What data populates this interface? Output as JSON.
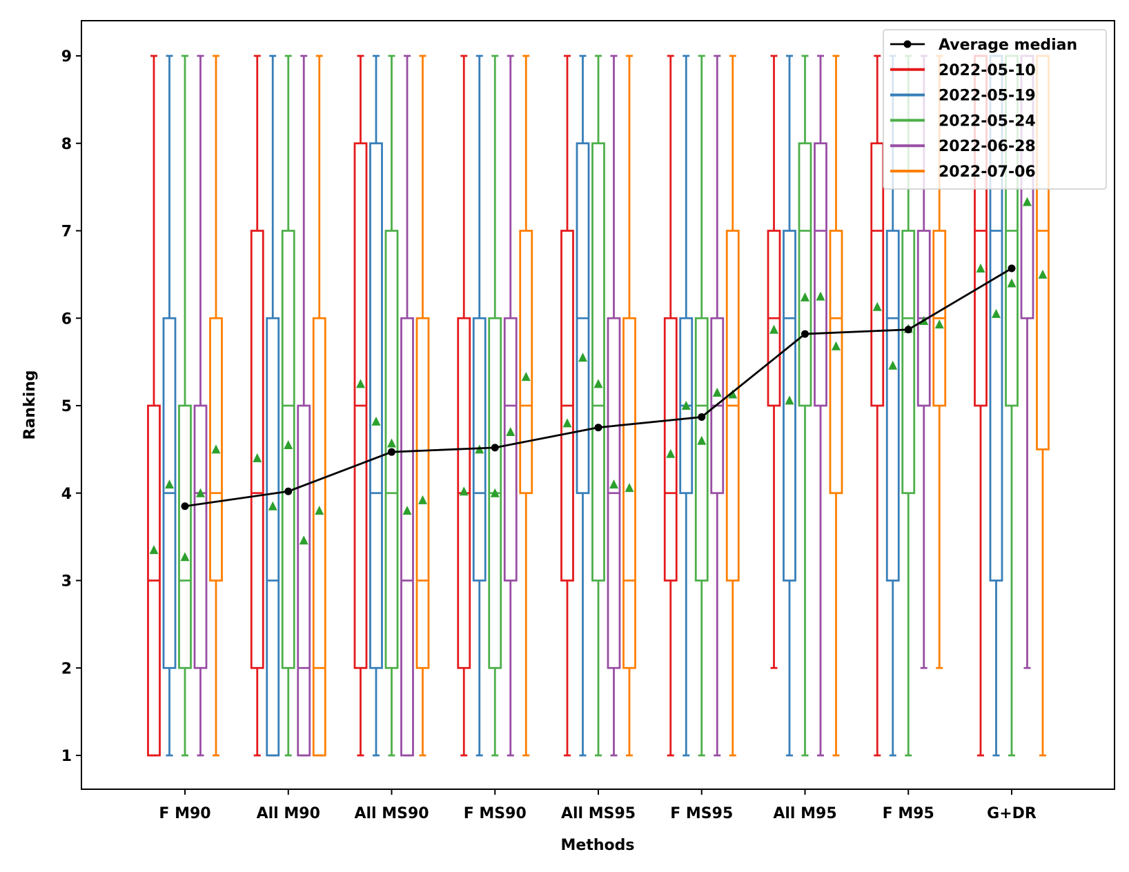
{
  "chart_data": {
    "type": "box",
    "title": "",
    "xlabel": "Methods",
    "ylabel": "Ranking",
    "ylim": [
      0.6,
      9.4
    ],
    "yticks": [
      "1",
      "2",
      "3",
      "4",
      "5",
      "6",
      "7",
      "8",
      "9"
    ],
    "grid": false,
    "legend_position": "top-right",
    "categories": [
      "F M90",
      "All M90",
      "All MS90",
      "F MS90",
      "All MS95",
      "F MS95",
      "All M95",
      "F M95",
      "G+DR"
    ],
    "mean_marker_color": "#2ca02c",
    "series": [
      {
        "name": "2022-05-10",
        "color": "#e41a1c",
        "boxes": [
          {
            "min": 1,
            "q1": 1,
            "median": 3,
            "q3": 5,
            "max": 9,
            "mean": 3.35
          },
          {
            "min": 1,
            "q1": 2,
            "median": 4,
            "q3": 7,
            "max": 9,
            "mean": 4.4
          },
          {
            "min": 1,
            "q1": 2,
            "median": 5,
            "q3": 8,
            "max": 9,
            "mean": 5.25
          },
          {
            "min": 1,
            "q1": 2,
            "median": 4,
            "q3": 6,
            "max": 9,
            "mean": 4.02
          },
          {
            "min": 1,
            "q1": 3,
            "median": 5,
            "q3": 7,
            "max": 9,
            "mean": 4.8
          },
          {
            "min": 1,
            "q1": 3,
            "median": 4,
            "q3": 6,
            "max": 9,
            "mean": 4.45
          },
          {
            "min": 2,
            "q1": 5,
            "median": 6,
            "q3": 7,
            "max": 9,
            "mean": 5.87
          },
          {
            "min": 1,
            "q1": 5,
            "median": 7,
            "q3": 8,
            "max": 9,
            "mean": 6.13
          },
          {
            "min": 1,
            "q1": 5,
            "median": 7,
            "q3": 9,
            "max": 9,
            "mean": 6.57
          }
        ]
      },
      {
        "name": "2022-05-19",
        "color": "#377eb8",
        "boxes": [
          {
            "min": 1,
            "q1": 2,
            "median": 4,
            "q3": 6,
            "max": 9,
            "mean": 4.1
          },
          {
            "min": 1,
            "q1": 1,
            "median": 3,
            "q3": 6,
            "max": 9,
            "mean": 3.85
          },
          {
            "min": 1,
            "q1": 2,
            "median": 4,
            "q3": 8,
            "max": 9,
            "mean": 4.82
          },
          {
            "min": 1,
            "q1": 3,
            "median": 4,
            "q3": 6,
            "max": 9,
            "mean": 4.5
          },
          {
            "min": 1,
            "q1": 4,
            "median": 6,
            "q3": 8,
            "max": 9,
            "mean": 5.55
          },
          {
            "min": 1,
            "q1": 4,
            "median": 5,
            "q3": 6,
            "max": 9,
            "mean": 5.0
          },
          {
            "min": 1,
            "q1": 3,
            "median": 6,
            "q3": 7,
            "max": 9,
            "mean": 5.06
          },
          {
            "min": 1,
            "q1": 3,
            "median": 6,
            "q3": 7,
            "max": 9,
            "mean": 5.46
          },
          {
            "min": 1,
            "q1": 3,
            "median": 7,
            "q3": 9,
            "max": 9,
            "mean": 6.05
          }
        ]
      },
      {
        "name": "2022-05-24",
        "color": "#4daf4a",
        "boxes": [
          {
            "min": 1,
            "q1": 2,
            "median": 3,
            "q3": 5,
            "max": 9,
            "mean": 3.27
          },
          {
            "min": 1,
            "q1": 2,
            "median": 5,
            "q3": 7,
            "max": 9,
            "mean": 4.55
          },
          {
            "min": 1,
            "q1": 2,
            "median": 4,
            "q3": 7,
            "max": 9,
            "mean": 4.57
          },
          {
            "min": 1,
            "q1": 2,
            "median": 4,
            "q3": 6,
            "max": 9,
            "mean": 4.0
          },
          {
            "min": 1,
            "q1": 3,
            "median": 5,
            "q3": 8,
            "max": 9,
            "mean": 5.25
          },
          {
            "min": 1,
            "q1": 3,
            "median": 5,
            "q3": 6,
            "max": 9,
            "mean": 4.6
          },
          {
            "min": 1,
            "q1": 5,
            "median": 7,
            "q3": 8,
            "max": 9,
            "mean": 6.24
          },
          {
            "min": 1,
            "q1": 4,
            "median": 6,
            "q3": 7,
            "max": 9,
            "mean": 5.88
          },
          {
            "min": 1,
            "q1": 5,
            "median": 7,
            "q3": 9,
            "max": 9,
            "mean": 6.4
          }
        ]
      },
      {
        "name": "2022-06-28",
        "color": "#984ea3",
        "boxes": [
          {
            "min": 1,
            "q1": 2,
            "median": 4,
            "q3": 5,
            "max": 9,
            "mean": 4.0
          },
          {
            "min": 1,
            "q1": 1,
            "median": 2,
            "q3": 5,
            "max": 9,
            "mean": 3.46
          },
          {
            "min": 1,
            "q1": 1,
            "median": 3,
            "q3": 6,
            "max": 9,
            "mean": 3.8
          },
          {
            "min": 1,
            "q1": 3,
            "median": 5,
            "q3": 6,
            "max": 9,
            "mean": 4.7
          },
          {
            "min": 1,
            "q1": 2,
            "median": 4,
            "q3": 6,
            "max": 9,
            "mean": 4.1
          },
          {
            "min": 1,
            "q1": 4,
            "median": 5,
            "q3": 6,
            "max": 9,
            "mean": 5.15
          },
          {
            "min": 1,
            "q1": 5,
            "median": 7,
            "q3": 8,
            "max": 9,
            "mean": 6.25
          },
          {
            "min": 2,
            "q1": 5,
            "median": 6,
            "q3": 7,
            "max": 9,
            "mean": 5.97
          },
          {
            "min": 2,
            "q1": 6,
            "median": 8,
            "q3": 9,
            "max": 9,
            "mean": 7.33
          }
        ]
      },
      {
        "name": "2022-07-06",
        "color": "#ff7f00",
        "boxes": [
          {
            "min": 1,
            "q1": 3,
            "median": 4,
            "q3": 6,
            "max": 9,
            "mean": 4.5
          },
          {
            "min": 1,
            "q1": 1,
            "median": 2,
            "q3": 6,
            "max": 9,
            "mean": 3.8
          },
          {
            "min": 1,
            "q1": 2,
            "median": 3,
            "q3": 6,
            "max": 9,
            "mean": 3.92
          },
          {
            "min": 1,
            "q1": 4,
            "median": 5,
            "q3": 7,
            "max": 9,
            "mean": 5.33
          },
          {
            "min": 1,
            "q1": 2,
            "median": 3,
            "q3": 6,
            "max": 9,
            "mean": 4.06
          },
          {
            "min": 1,
            "q1": 3,
            "median": 5,
            "q3": 7,
            "max": 9,
            "mean": 5.13
          },
          {
            "min": 1,
            "q1": 4,
            "median": 6,
            "q3": 7,
            "max": 9,
            "mean": 5.68
          },
          {
            "min": 2,
            "q1": 5,
            "median": 6,
            "q3": 7,
            "max": 9,
            "mean": 5.93
          },
          {
            "min": 1,
            "q1": 4.5,
            "median": 7,
            "q3": 9,
            "max": 9,
            "mean": 6.5
          }
        ]
      }
    ],
    "average_median": {
      "name": "Average median",
      "color": "#000000",
      "values": [
        3.85,
        4.02,
        4.47,
        4.52,
        4.75,
        4.87,
        5.82,
        5.87,
        6.57
      ]
    }
  }
}
